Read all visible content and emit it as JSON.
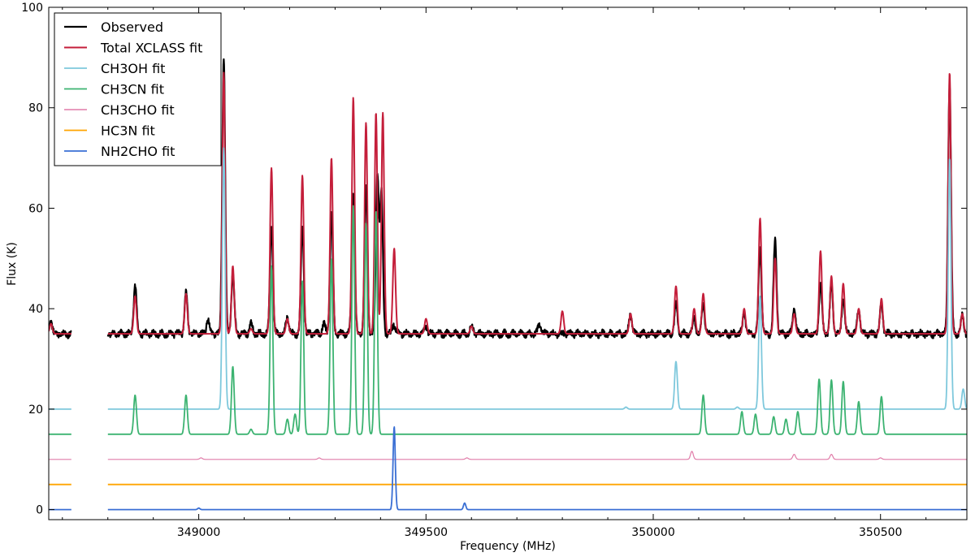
{
  "chart_data": {
    "type": "line",
    "title": "",
    "xlabel": "Frequency (MHz)",
    "ylabel": "Flux (K)",
    "xlim": [
      348670,
      350690
    ],
    "ylim": [
      -2,
      100
    ],
    "gap": [
      348720,
      348800
    ],
    "x_ticks": [
      349000,
      349500,
      350000,
      350500
    ],
    "y_ticks": [
      0,
      20,
      40,
      60,
      80,
      100
    ],
    "grid": false,
    "legend_position": "top-left",
    "series": [
      {
        "name": "Observed",
        "color": "#000000",
        "width": 2.2,
        "baseline": 35.0,
        "width_mhz": 3.2,
        "noise": 0.9,
        "lines": [
          [
            348675,
            2.5
          ],
          [
            348860,
            9.5
          ],
          [
            348972,
            8
          ],
          [
            349020,
            3
          ],
          [
            349055,
            55
          ],
          [
            349075,
            12
          ],
          [
            349115,
            2
          ],
          [
            349160,
            21.5
          ],
          [
            349195,
            3.5
          ],
          [
            349228,
            21
          ],
          [
            349275,
            2
          ],
          [
            349292,
            24
          ],
          [
            349340,
            28
          ],
          [
            349368,
            29
          ],
          [
            349393,
            32
          ],
          [
            349402,
            28
          ],
          [
            349430,
            2
          ],
          [
            349500,
            1.5
          ],
          [
            349600,
            1.5
          ],
          [
            349750,
            2
          ],
          [
            349950,
            4
          ],
          [
            350050,
            6
          ],
          [
            350090,
            3
          ],
          [
            350110,
            6
          ],
          [
            350200,
            4
          ],
          [
            350235,
            17
          ],
          [
            350268,
            18.5
          ],
          [
            350310,
            5
          ],
          [
            350368,
            10
          ],
          [
            350392,
            10
          ],
          [
            350418,
            7
          ],
          [
            350452,
            5
          ],
          [
            350502,
            6
          ],
          [
            350652,
            50
          ],
          [
            350680,
            3.5
          ]
        ]
      },
      {
        "name": "Total XCLASS fit",
        "color": "#c41e3a",
        "width": 2.0,
        "baseline": 35.0,
        "width_mhz": 3.0,
        "noise": 0,
        "lines": [
          [
            348675,
            2
          ],
          [
            348860,
            7.5
          ],
          [
            348972,
            8
          ],
          [
            349055,
            52
          ],
          [
            349075,
            13.5
          ],
          [
            349115,
            1
          ],
          [
            349160,
            33
          ],
          [
            349195,
            3
          ],
          [
            349228,
            31.5
          ],
          [
            349292,
            35
          ],
          [
            349340,
            47
          ],
          [
            349368,
            42
          ],
          [
            349390,
            44
          ],
          [
            349405,
            44
          ],
          [
            349430,
            17
          ],
          [
            349500,
            3
          ],
          [
            349600,
            1.5
          ],
          [
            349800,
            4.5
          ],
          [
            349950,
            4
          ],
          [
            350050,
            9.5
          ],
          [
            350090,
            5
          ],
          [
            350110,
            8
          ],
          [
            350200,
            5
          ],
          [
            350235,
            23
          ],
          [
            350268,
            15
          ],
          [
            350310,
            4
          ],
          [
            350368,
            16.5
          ],
          [
            350392,
            11.5
          ],
          [
            350418,
            10
          ],
          [
            350452,
            5
          ],
          [
            350502,
            7
          ],
          [
            350652,
            52
          ],
          [
            350680,
            4
          ]
        ]
      },
      {
        "name": "CH3OH fit",
        "color": "#7ec8dc",
        "width": 1.8,
        "baseline": 20.0,
        "width_mhz": 3.0,
        "noise": 0,
        "lines": [
          [
            349055,
            52
          ],
          [
            349940,
            0.4
          ],
          [
            350050,
            9.5
          ],
          [
            350185,
            0.4
          ],
          [
            350235,
            22.5
          ],
          [
            350652,
            50
          ],
          [
            350682,
            4
          ]
        ]
      },
      {
        "name": "CH3CN fit",
        "color": "#3cb371",
        "width": 1.8,
        "baseline": 15.0,
        "width_mhz": 3.0,
        "noise": 0,
        "lines": [
          [
            348860,
            7.8
          ],
          [
            348972,
            7.8
          ],
          [
            349075,
            13.5
          ],
          [
            349115,
            1
          ],
          [
            349195,
            3
          ],
          [
            349212,
            4
          ],
          [
            349228,
            30.5
          ],
          [
            349160,
            33.5
          ],
          [
            349292,
            35
          ],
          [
            349340,
            45.5
          ],
          [
            349368,
            42
          ],
          [
            349390,
            44.5
          ],
          [
            350110,
            7.8
          ],
          [
            350195,
            4.5
          ],
          [
            350225,
            4
          ],
          [
            350265,
            3.5
          ],
          [
            350292,
            3
          ],
          [
            350318,
            4.5
          ],
          [
            350365,
            11
          ],
          [
            350392,
            10.8
          ],
          [
            350418,
            10.5
          ],
          [
            350452,
            6.5
          ],
          [
            350502,
            7.5
          ]
        ]
      },
      {
        "name": "CH3CHO fit",
        "color": "#e07ba8",
        "width": 1.2,
        "baseline": 10.0,
        "width_mhz": 3.0,
        "noise": 0,
        "lines": [
          [
            349005,
            0.3
          ],
          [
            349265,
            0.3
          ],
          [
            349590,
            0.3
          ],
          [
            350085,
            1.6
          ],
          [
            350310,
            1.0
          ],
          [
            350392,
            1.0
          ],
          [
            350500,
            0.3
          ]
        ]
      },
      {
        "name": "HC3N fit",
        "color": "#ffa500",
        "width": 1.8,
        "baseline": 5.0,
        "width_mhz": 3.0,
        "noise": 0,
        "lines": []
      },
      {
        "name": "NH2CHO fit",
        "color": "#3a6fd4",
        "width": 1.8,
        "baseline": 0.0,
        "width_mhz": 2.5,
        "noise": 0,
        "lines": [
          [
            349000,
            0.3
          ],
          [
            349430,
            16.5
          ],
          [
            349585,
            1.3
          ]
        ]
      }
    ]
  }
}
